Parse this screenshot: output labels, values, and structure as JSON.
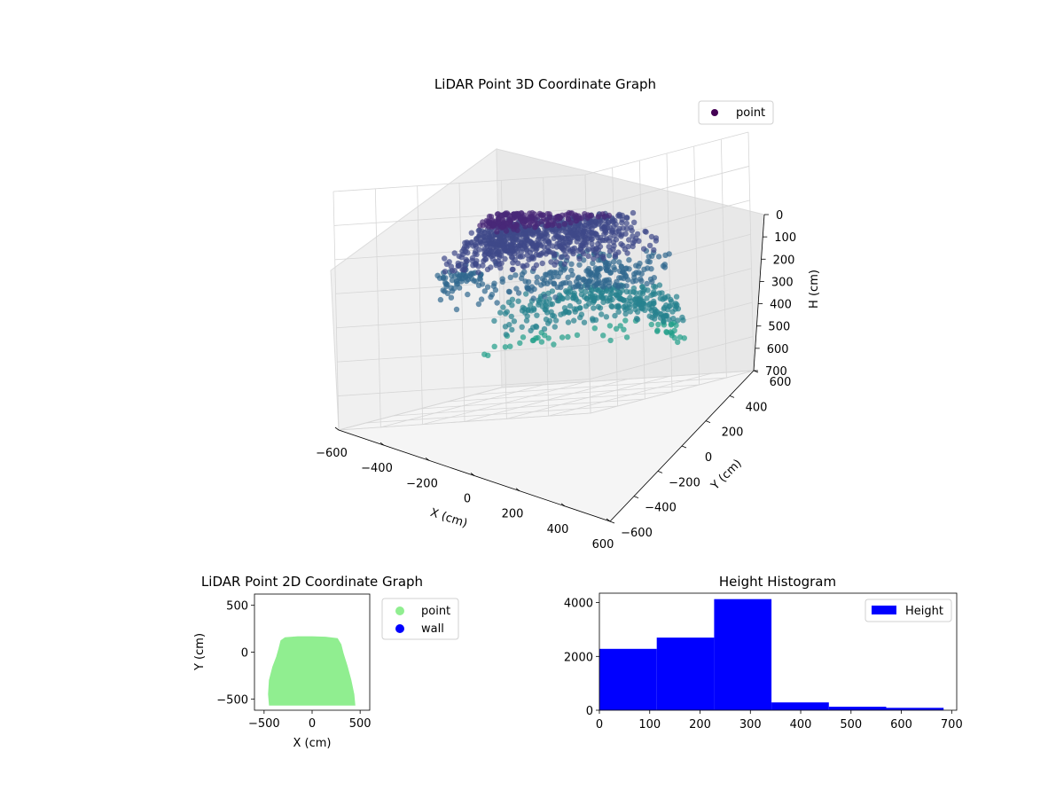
{
  "chart_data": [
    {
      "type": "scatter3d",
      "title": "LiDAR Point 3D Coordinate Graph",
      "xlabel": "X (cm)",
      "ylabel": "Y (cm)",
      "zlabel": "H (cm)",
      "xlim": [
        -600,
        600
      ],
      "ylim": [
        -600,
        600
      ],
      "zlim": [
        700,
        0
      ],
      "x_ticks": [
        -600,
        -400,
        -200,
        0,
        200,
        400,
        600
      ],
      "y_ticks": [
        -600,
        -400,
        -200,
        0,
        200,
        400,
        600
      ],
      "z_ticks": [
        0,
        100,
        200,
        300,
        400,
        500,
        600,
        700
      ],
      "z_inverted": true,
      "colormap": "viridis",
      "grid": true,
      "legend": {
        "placement": "upper-right",
        "entries": [
          {
            "label": "point",
            "color": "#440154"
          }
        ]
      }
    },
    {
      "type": "scatter",
      "title": "LiDAR Point 2D Coordinate Graph",
      "xlabel": "X (cm)",
      "ylabel": "Y (cm)",
      "xlim": [
        -600,
        600
      ],
      "ylim": [
        -620,
        620
      ],
      "x_ticks": [
        -500,
        0,
        500
      ],
      "y_ticks": [
        -500,
        0,
        500
      ],
      "footprint_outline": [
        [
          -440,
          -560
        ],
        [
          -450,
          -450
        ],
        [
          -440,
          -300
        ],
        [
          -405,
          -160
        ],
        [
          -365,
          -50
        ],
        [
          -340,
          40
        ],
        [
          -320,
          120
        ],
        [
          -280,
          150
        ],
        [
          -150,
          160
        ],
        [
          0,
          160
        ],
        [
          140,
          155
        ],
        [
          260,
          140
        ],
        [
          295,
          80
        ],
        [
          320,
          -20
        ],
        [
          360,
          -150
        ],
        [
          400,
          -300
        ],
        [
          430,
          -450
        ],
        [
          440,
          -560
        ]
      ],
      "series": [
        {
          "name": "point",
          "color": "#90ee90"
        },
        {
          "name": "wall",
          "color": "#0000ff"
        }
      ],
      "legend": {
        "placement": "outside-right-top"
      }
    },
    {
      "type": "histogram",
      "title": "Height Histogram",
      "bin_edges": [
        0,
        114,
        228,
        342,
        456,
        570,
        684
      ],
      "values": [
        2280,
        2700,
        4130,
        290,
        130,
        90
      ],
      "color": "#0000ff",
      "xlim": [
        0,
        710
      ],
      "ylim": [
        0,
        4350
      ],
      "x_ticks": [
        0,
        100,
        200,
        300,
        400,
        500,
        600,
        700
      ],
      "y_ticks": [
        0,
        2000,
        4000
      ],
      "series": [
        {
          "name": "Height"
        }
      ],
      "legend": {
        "placement": "upper-right"
      }
    }
  ]
}
